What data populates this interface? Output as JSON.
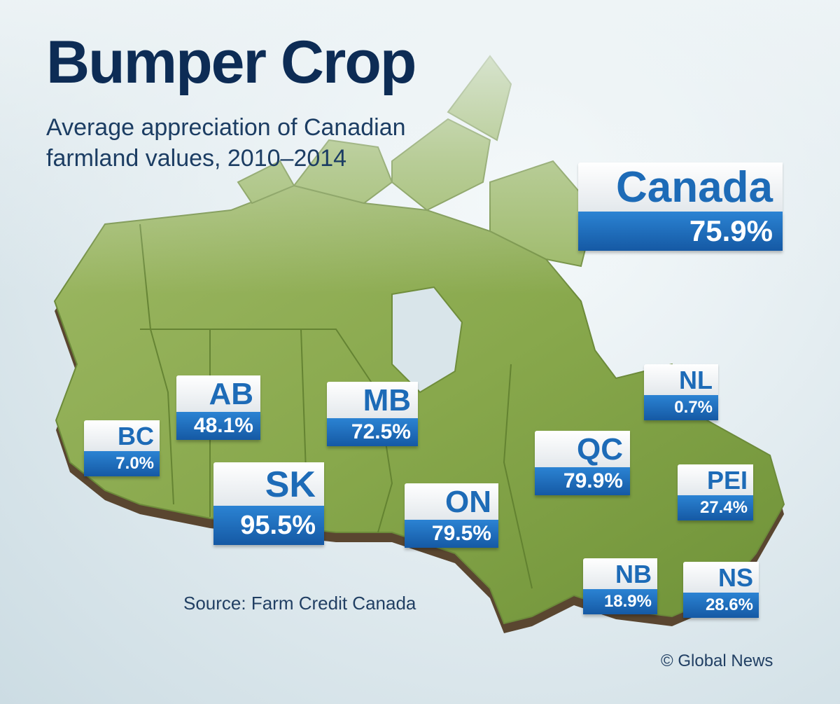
{
  "title": "Bumper Crop",
  "subtitle_lines": [
    "Average appreciation of Canadian",
    "farmland values, 2010–2014"
  ],
  "source": "Source: Farm Credit Canada",
  "credit": "© Global News",
  "colors": {
    "title": "#0d2c55",
    "abbr_text": "#1d6bb7",
    "value_bar": "#1d6bb7",
    "land": "#8fae55",
    "land_side": "#5a4a2a"
  },
  "national": {
    "name": "Canada",
    "value": "75.9%"
  },
  "provinces": {
    "bc": {
      "abbr": "BC",
      "value": "7.0%"
    },
    "ab": {
      "abbr": "AB",
      "value": "48.1%"
    },
    "sk": {
      "abbr": "SK",
      "value": "95.5%"
    },
    "mb": {
      "abbr": "MB",
      "value": "72.5%"
    },
    "on": {
      "abbr": "ON",
      "value": "79.5%"
    },
    "qc": {
      "abbr": "QC",
      "value": "79.9%"
    },
    "nl": {
      "abbr": "NL",
      "value": "0.7%"
    },
    "pei": {
      "abbr": "PEI",
      "value": "27.4%"
    },
    "nb": {
      "abbr": "NB",
      "value": "18.9%"
    },
    "ns": {
      "abbr": "NS",
      "value": "28.6%"
    }
  }
}
